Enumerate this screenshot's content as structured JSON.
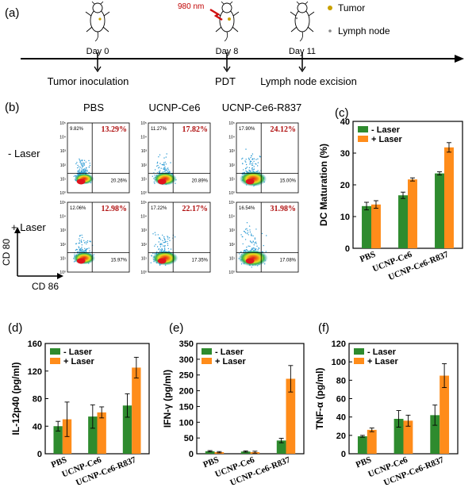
{
  "panel_a": {
    "label": "(a)",
    "laser_text": "980 nm",
    "legend": {
      "tumor": "Tumor",
      "lymph": "Lymph node"
    },
    "events": [
      {
        "day": "Day 0",
        "desc": "Tumor inoculation"
      },
      {
        "day": "Day 8",
        "desc": "PDT"
      },
      {
        "day": "Day 11",
        "desc": "Lymph node excision"
      }
    ]
  },
  "panel_b": {
    "label": "(b)",
    "columns": [
      "PBS",
      "UCNP-Ce6",
      "UCNP-Ce6-R837"
    ],
    "rows": [
      "- Laser",
      "+ Laser"
    ],
    "x_axis": "CD 86",
    "y_axis": "CD 80",
    "ticks": [
      "10⁰",
      "10¹",
      "10²",
      "10³",
      "10⁴",
      "10⁵"
    ],
    "plots": [
      [
        {
          "ul": "9.82%",
          "ur": "13.29%",
          "lr": "20.26%"
        },
        {
          "ul": "11.27%",
          "ur": "17.82%",
          "lr": "20.89%"
        },
        {
          "ul": "17.90%",
          "ur": "24.12%",
          "lr": "15.00%"
        }
      ],
      [
        {
          "ul": "12.06%",
          "ur": "12.98%",
          "lr": "15.97%"
        },
        {
          "ul": "17.22%",
          "ur": "22.17%",
          "lr": "17.35%"
        },
        {
          "ul": "16.54%",
          "ur": "31.98%",
          "lr": "17.08%"
        }
      ]
    ]
  },
  "colors": {
    "minus": "#2e8b2e",
    "plus": "#ff8c1a",
    "flow_hi": "#e0141e",
    "flow_mid": "#f0e020",
    "flow_lo": "#2d9bd4"
  },
  "chart_data": [
    {
      "panel": "(c)",
      "type": "bar",
      "categories": [
        "PBS",
        "UCNP-Ce6",
        "UCNP-Ce6-R837"
      ],
      "series": [
        {
          "name": "- Laser",
          "values": [
            13.3,
            16.7,
            23.6
          ],
          "errors": [
            1.2,
            1.0,
            0.5
          ]
        },
        {
          "name": "+ Laser",
          "values": [
            13.8,
            21.7,
            31.8
          ],
          "errors": [
            1.2,
            0.5,
            1.5
          ]
        }
      ],
      "ylabel": "DC Maturation (%)",
      "ylim": [
        0,
        40
      ],
      "yticks": [
        0,
        10,
        20,
        30,
        40
      ]
    },
    {
      "panel": "(d)",
      "type": "bar",
      "categories": [
        "PBS",
        "UCNP-Ce6",
        "UCNP-Ce6-R837"
      ],
      "series": [
        {
          "name": "- Laser",
          "values": [
            40,
            54,
            70
          ],
          "errors": [
            7,
            17,
            17
          ]
        },
        {
          "name": "+ Laser",
          "values": [
            50,
            60,
            125
          ],
          "errors": [
            25,
            8,
            15
          ]
        }
      ],
      "ylabel": "IL-12p40 (pg/ml)",
      "ylim": [
        0,
        160
      ],
      "yticks": [
        0,
        40,
        80,
        120,
        160
      ]
    },
    {
      "panel": "(e)",
      "type": "bar",
      "categories": [
        "PBS",
        "UCNP-Ce6",
        "UCNP-Ce6-R837"
      ],
      "series": [
        {
          "name": "- Laser",
          "values": [
            8,
            7,
            42
          ],
          "errors": [
            2,
            2,
            7
          ]
        },
        {
          "name": "+ Laser",
          "values": [
            5,
            5,
            238
          ],
          "errors": [
            2,
            3,
            42
          ]
        }
      ],
      "ylabel": "IFN-γ (pg/ml)",
      "ylim": [
        0,
        350
      ],
      "yticks": [
        0,
        50,
        100,
        150,
        200,
        250,
        300,
        350
      ]
    },
    {
      "panel": "(f)",
      "type": "bar",
      "categories": [
        "PBS",
        "UCNP-Ce6",
        "UCNP-Ce6-R837"
      ],
      "series": [
        {
          "name": "- Laser",
          "values": [
            19,
            38,
            42
          ],
          "errors": [
            1,
            9,
            11
          ]
        },
        {
          "name": "+ Laser",
          "values": [
            26,
            36,
            85
          ],
          "errors": [
            2,
            6,
            13
          ]
        }
      ],
      "ylabel": "TNF-α (pg/ml)",
      "ylim": [
        0,
        120
      ],
      "yticks": [
        0,
        20,
        40,
        60,
        80,
        100,
        120
      ]
    }
  ]
}
